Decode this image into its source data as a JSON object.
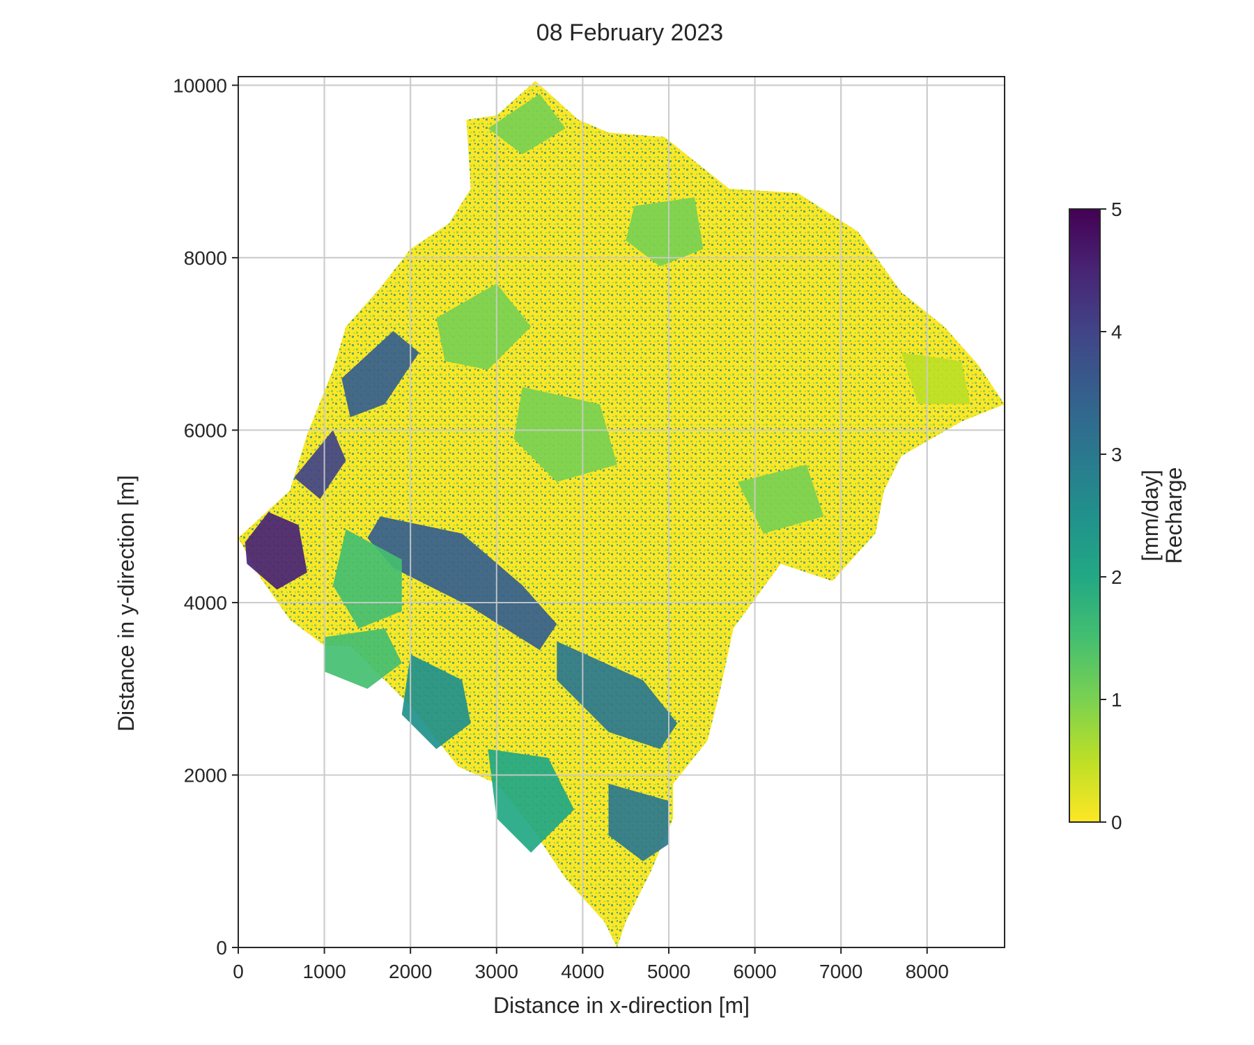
{
  "chart_data": {
    "type": "heatmap",
    "title": "08 February 2023",
    "xlabel": "Distance in x-direction [m]",
    "ylabel": "Distance in y-direction [m]",
    "xlim": [
      0,
      8900
    ],
    "ylim": [
      0,
      10100
    ],
    "xticks": [
      0,
      1000,
      2000,
      3000,
      4000,
      5000,
      6000,
      7000,
      8000
    ],
    "yticks": [
      0,
      2000,
      4000,
      6000,
      8000,
      10000
    ],
    "grid": true,
    "colorbar": {
      "label_line1": "Recharge",
      "label_line2": "[mm/day]",
      "min": 0,
      "max": 5,
      "ticks": [
        0,
        1,
        2,
        3,
        4,
        5
      ],
      "colormap": "viridis_r"
    },
    "catchment_outline": [
      [
        0,
        4750
      ],
      [
        600,
        5300
      ],
      [
        800,
        5950
      ],
      [
        1100,
        6700
      ],
      [
        1250,
        7200
      ],
      [
        1650,
        7650
      ],
      [
        2000,
        8100
      ],
      [
        2450,
        8400
      ],
      [
        2700,
        8800
      ],
      [
        2650,
        9600
      ],
      [
        3000,
        9650
      ],
      [
        3450,
        10050
      ],
      [
        3950,
        9600
      ],
      [
        4300,
        9450
      ],
      [
        4950,
        9400
      ],
      [
        5700,
        8800
      ],
      [
        6500,
        8750
      ],
      [
        7200,
        8300
      ],
      [
        7700,
        7600
      ],
      [
        8200,
        7200
      ],
      [
        8600,
        6750
      ],
      [
        8900,
        6300
      ],
      [
        8400,
        6100
      ],
      [
        7700,
        5700
      ],
      [
        7500,
        5300
      ],
      [
        7400,
        4800
      ],
      [
        6900,
        4250
      ],
      [
        6300,
        4450
      ],
      [
        5750,
        3700
      ],
      [
        5600,
        3000
      ],
      [
        5450,
        2400
      ],
      [
        5050,
        1900
      ],
      [
        5050,
        1500
      ],
      [
        4800,
        900
      ],
      [
        4500,
        300
      ],
      [
        4400,
        0
      ],
      [
        4250,
        300
      ],
      [
        3800,
        800
      ],
      [
        3400,
        1400
      ],
      [
        3000,
        1900
      ],
      [
        2550,
        2100
      ],
      [
        2000,
        2800
      ],
      [
        1300,
        3500
      ],
      [
        1000,
        3500
      ],
      [
        600,
        3800
      ],
      [
        250,
        4300
      ]
    ],
    "high_recharge_zones": [
      {
        "value": 4.6,
        "polygon": [
          [
            100,
            4450
          ],
          [
            450,
            4150
          ],
          [
            800,
            4350
          ],
          [
            700,
            4900
          ],
          [
            350,
            5050
          ],
          [
            80,
            4700
          ]
        ]
      },
      {
        "value": 4.4,
        "polygon": [
          [
            650,
            5450
          ],
          [
            1100,
            6000
          ],
          [
            1250,
            5650
          ],
          [
            950,
            5200
          ]
        ]
      },
      {
        "value": 3.9,
        "polygon": [
          [
            1650,
            5000
          ],
          [
            2600,
            4800
          ],
          [
            3300,
            4200
          ],
          [
            3700,
            3750
          ],
          [
            3500,
            3450
          ],
          [
            2700,
            3950
          ],
          [
            1800,
            4400
          ],
          [
            1500,
            4750
          ]
        ]
      },
      {
        "value": 3.6,
        "polygon": [
          [
            1200,
            6600
          ],
          [
            1800,
            7150
          ],
          [
            2100,
            6900
          ],
          [
            1700,
            6300
          ],
          [
            1300,
            6150
          ]
        ]
      },
      {
        "value": 3.3,
        "polygon": [
          [
            3700,
            3550
          ],
          [
            4700,
            3100
          ],
          [
            5100,
            2600
          ],
          [
            4900,
            2300
          ],
          [
            4300,
            2500
          ],
          [
            3700,
            3100
          ]
        ]
      },
      {
        "value": 3.0,
        "polygon": [
          [
            4300,
            1900
          ],
          [
            5000,
            1700
          ],
          [
            5000,
            1200
          ],
          [
            4700,
            1000
          ],
          [
            4300,
            1300
          ]
        ]
      },
      {
        "value": 2.8,
        "polygon": [
          [
            2000,
            3400
          ],
          [
            2600,
            3100
          ],
          [
            2700,
            2600
          ],
          [
            2300,
            2300
          ],
          [
            1900,
            2700
          ]
        ]
      },
      {
        "value": 2.2,
        "polygon": [
          [
            2900,
            2300
          ],
          [
            3600,
            2200
          ],
          [
            3900,
            1600
          ],
          [
            3400,
            1100
          ],
          [
            3000,
            1500
          ]
        ]
      },
      {
        "value": 1.9,
        "polygon": [
          [
            1000,
            3600
          ],
          [
            1700,
            3700
          ],
          [
            1900,
            3300
          ],
          [
            1500,
            3000
          ],
          [
            1000,
            3200
          ]
        ]
      },
      {
        "value": 1.5,
        "polygon": [
          [
            1250,
            4850
          ],
          [
            1900,
            4500
          ],
          [
            1900,
            3900
          ],
          [
            1400,
            3700
          ],
          [
            1100,
            4200
          ]
        ]
      },
      {
        "value": 1.4,
        "polygon": [
          [
            2300,
            7300
          ],
          [
            3000,
            7700
          ],
          [
            3400,
            7200
          ],
          [
            2900,
            6700
          ],
          [
            2400,
            6800
          ]
        ]
      },
      {
        "value": 1.3,
        "polygon": [
          [
            3300,
            6500
          ],
          [
            4200,
            6300
          ],
          [
            4400,
            5600
          ],
          [
            3700,
            5400
          ],
          [
            3200,
            5900
          ]
        ]
      },
      {
        "value": 1.2,
        "polygon": [
          [
            4600,
            8600
          ],
          [
            5300,
            8700
          ],
          [
            5400,
            8100
          ],
          [
            4900,
            7900
          ],
          [
            4500,
            8200
          ]
        ]
      },
      {
        "value": 1.1,
        "polygon": [
          [
            2900,
            9500
          ],
          [
            3500,
            9900
          ],
          [
            3800,
            9500
          ],
          [
            3300,
            9200
          ]
        ]
      },
      {
        "value": 1.0,
        "polygon": [
          [
            5800,
            5400
          ],
          [
            6600,
            5600
          ],
          [
            6800,
            5000
          ],
          [
            6100,
            4800
          ]
        ]
      },
      {
        "value": 0.9,
        "polygon": [
          [
            7700,
            6900
          ],
          [
            8400,
            6800
          ],
          [
            8500,
            6300
          ],
          [
            7900,
            6300
          ]
        ]
      }
    ]
  }
}
